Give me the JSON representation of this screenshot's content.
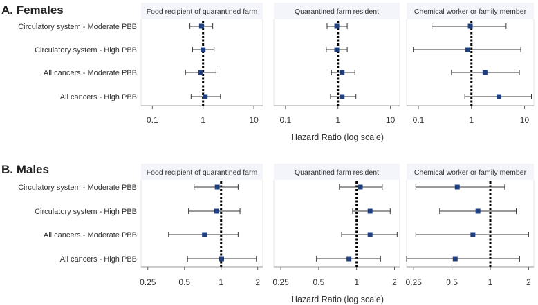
{
  "chart_data": [
    {
      "type": "forest",
      "section_title": "A. Females",
      "xlabel": "Hazard Ratio (log scale)",
      "x_scale": "log",
      "xlim": [
        0.06,
        15
      ],
      "xticks": [
        0.1,
        1,
        10
      ],
      "xtick_labels": [
        "0.1",
        "1",
        "10"
      ],
      "reference_line": 1,
      "row_labels": [
        "Circulatory system - Moderate PBB",
        "Circulatory system - High PBB",
        "All cancers - Moderate PBB",
        "All cancers - High PBB"
      ],
      "panels": [
        {
          "title": "Food recipient of quarantined farm",
          "estimates": [
            {
              "hr": 0.93,
              "lower": 0.55,
              "upper": 1.55
            },
            {
              "hr": 1.0,
              "lower": 0.62,
              "upper": 1.65
            },
            {
              "hr": 0.9,
              "lower": 0.45,
              "upper": 1.8
            },
            {
              "hr": 1.1,
              "lower": 0.58,
              "upper": 2.2
            }
          ]
        },
        {
          "title": "Quarantined farm resident",
          "estimates": [
            {
              "hr": 0.95,
              "lower": 0.62,
              "upper": 1.5
            },
            {
              "hr": 0.95,
              "lower": 0.6,
              "upper": 1.5
            },
            {
              "hr": 1.2,
              "lower": 0.75,
              "upper": 2.1
            },
            {
              "hr": 1.2,
              "lower": 0.72,
              "upper": 2.2
            }
          ]
        },
        {
          "title": "Chemical worker or family member",
          "estimates": [
            {
              "hr": 0.95,
              "lower": 0.18,
              "upper": 4.5
            },
            {
              "hr": 0.85,
              "lower": 0.08,
              "upper": 8.5
            },
            {
              "hr": 1.8,
              "lower": 0.42,
              "upper": 8.0
            },
            {
              "hr": 3.3,
              "lower": 0.75,
              "upper": 13.5
            }
          ]
        }
      ]
    },
    {
      "type": "forest",
      "section_title": "B. Males",
      "xlabel": "Hazard Ratio (log scale)",
      "x_scale": "log",
      "xlim": [
        0.22,
        2.2
      ],
      "xticks": [
        0.25,
        0.5,
        1,
        2
      ],
      "xtick_labels": [
        "0.25",
        "0.5",
        "1",
        "2"
      ],
      "reference_line": 1,
      "row_labels": [
        "Circulatory system - Moderate PBB",
        "Circulatory system - High PBB",
        "All cancers - Moderate PBB",
        "All cancers - High PBB"
      ],
      "panels": [
        {
          "title": "Food recipient of quarantined farm",
          "estimates": [
            {
              "hr": 0.93,
              "lower": 0.6,
              "upper": 1.38
            },
            {
              "hr": 0.92,
              "lower": 0.54,
              "upper": 1.43
            },
            {
              "hr": 0.73,
              "lower": 0.37,
              "upper": 1.38
            },
            {
              "hr": 1.01,
              "lower": 0.53,
              "upper": 1.95
            }
          ]
        },
        {
          "title": "Quarantined farm resident",
          "estimates": [
            {
              "hr": 1.07,
              "lower": 0.73,
              "upper": 1.6
            },
            {
              "hr": 1.28,
              "lower": 0.93,
              "upper": 1.85
            },
            {
              "hr": 1.28,
              "lower": 0.76,
              "upper": 2.1
            },
            {
              "hr": 0.87,
              "lower": 0.48,
              "upper": 1.55
            }
          ]
        },
        {
          "title": "Chemical worker or family member",
          "estimates": [
            {
              "hr": 0.55,
              "lower": 0.26,
              "upper": 1.3
            },
            {
              "hr": 0.8,
              "lower": 0.4,
              "upper": 1.6
            },
            {
              "hr": 0.73,
              "lower": 0.26,
              "upper": 2.0
            },
            {
              "hr": 0.53,
              "lower": 0.22,
              "upper": 1.7
            }
          ]
        }
      ]
    }
  ],
  "colors": {
    "marker": "#1f3f7f",
    "ci_line": "#333333",
    "reference": "#000000",
    "panel_header_bg": "#f3f5fb",
    "panel_border": "#e3e3e3",
    "text": "#333333",
    "title": "#222222"
  }
}
